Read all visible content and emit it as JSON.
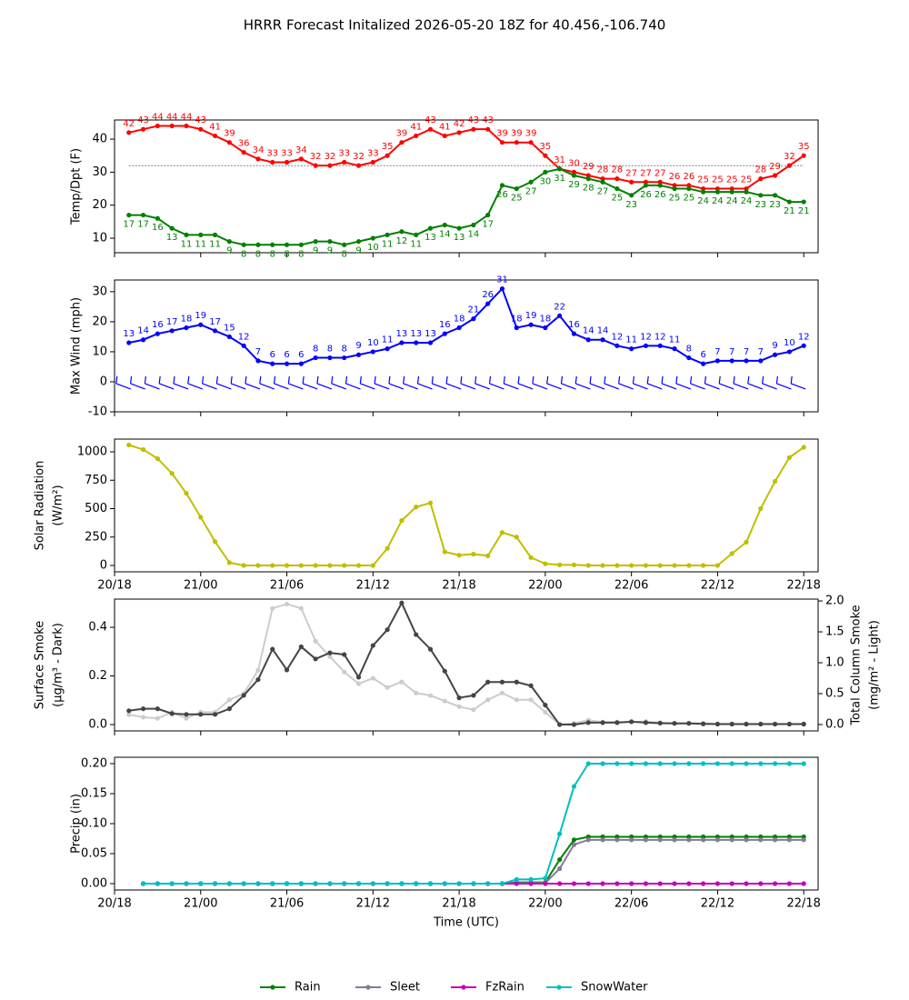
{
  "title": "HRRR Forecast Initalized 2026-05-20 18Z for 40.456,-106.740",
  "chart_data": [
    {
      "type": "line",
      "ylabel": [
        "Temp/Dpt (F)"
      ],
      "xlim": [
        0,
        49
      ],
      "xticks": [
        0,
        6,
        12,
        18,
        24,
        30,
        36,
        42,
        48
      ],
      "ylim": [
        5.6,
        45.8
      ],
      "yticks": [
        10,
        20,
        30,
        40
      ],
      "hline": 32,
      "x": [
        1,
        2,
        3,
        4,
        5,
        6,
        7,
        8,
        9,
        10,
        11,
        12,
        13,
        14,
        15,
        16,
        17,
        18,
        19,
        20,
        21,
        22,
        23,
        24,
        25,
        26,
        27,
        28,
        29,
        30,
        31,
        32,
        33,
        34,
        35,
        36,
        37,
        38,
        39,
        40,
        41,
        42,
        43,
        44,
        45,
        46,
        47,
        48
      ],
      "series": [
        {
          "name": "Temp",
          "color": "#ff0000",
          "labels": "above",
          "values": [
            42,
            43,
            44,
            44,
            44,
            43,
            41,
            39,
            36,
            34,
            33,
            33,
            34,
            32,
            32,
            33,
            32,
            33,
            35,
            39,
            41,
            43,
            41,
            42,
            43,
            43,
            39,
            39,
            39,
            35,
            31,
            30,
            29,
            28,
            28,
            27,
            27,
            27,
            26,
            26,
            25,
            25,
            25,
            25,
            28,
            29,
            32,
            35
          ]
        },
        {
          "name": "Dewpoint",
          "color": "#008000",
          "labels": "below",
          "values": [
            17,
            17,
            16,
            13,
            11,
            11,
            11,
            9,
            8,
            8,
            8,
            8,
            8,
            9,
            9,
            8,
            9,
            10,
            11,
            12,
            11,
            13,
            14,
            13,
            14,
            17,
            26,
            25,
            27,
            30,
            31,
            29,
            28,
            27,
            25,
            23,
            26,
            26,
            25,
            25,
            24,
            24,
            24,
            24,
            23,
            23,
            21,
            21
          ]
        }
      ]
    },
    {
      "type": "line",
      "ylabel": [
        "Max Wind (mph)"
      ],
      "xlim": [
        0,
        49
      ],
      "xticks": [
        0,
        6,
        12,
        18,
        24,
        30,
        36,
        42,
        48
      ],
      "ylim": [
        -10,
        33.9
      ],
      "yticks": [
        -10,
        0,
        10,
        20,
        30
      ],
      "x": [
        1,
        2,
        3,
        4,
        5,
        6,
        7,
        8,
        9,
        10,
        11,
        12,
        13,
        14,
        15,
        16,
        17,
        18,
        19,
        20,
        21,
        22,
        23,
        24,
        25,
        26,
        27,
        28,
        29,
        30,
        31,
        32,
        33,
        34,
        35,
        36,
        37,
        38,
        39,
        40,
        41,
        42,
        43,
        44,
        45,
        46,
        47,
        48
      ],
      "series": [
        {
          "name": "Max Wind",
          "color": "#0000ff",
          "labels": "above",
          "values": [
            13,
            14,
            16,
            17,
            18,
            19,
            17,
            15,
            12,
            7,
            6,
            6,
            6,
            8,
            8,
            8,
            9,
            10,
            11,
            13,
            13,
            13,
            16,
            18,
            21,
            26,
            31,
            18,
            19,
            18,
            22,
            16,
            14,
            14,
            12,
            11,
            12,
            12,
            11,
            8,
            6,
            7,
            7,
            7,
            7,
            9,
            10,
            12
          ]
        }
      ]
    },
    {
      "type": "line",
      "ylabel": [
        "Solar Radiation",
        "(W/m²)"
      ],
      "xlim": [
        0,
        49
      ],
      "xticks": [
        {
          "value": 0,
          "label": "20/18"
        },
        {
          "value": 6,
          "label": "21/00"
        },
        {
          "value": 12,
          "label": "21/06"
        },
        {
          "value": 18,
          "label": "21/12"
        },
        {
          "value": 24,
          "label": "21/18"
        },
        {
          "value": 30,
          "label": "22/00"
        },
        {
          "value": 36,
          "label": "22/06"
        },
        {
          "value": 42,
          "label": "22/12"
        },
        {
          "value": 48,
          "label": "22/18"
        }
      ],
      "ylim": [
        -56,
        1112
      ],
      "yticks": [
        0,
        250,
        500,
        750,
        1000
      ],
      "x": [
        1,
        2,
        3,
        4,
        5,
        6,
        7,
        8,
        9,
        10,
        11,
        12,
        13,
        14,
        15,
        16,
        17,
        18,
        19,
        20,
        21,
        22,
        23,
        24,
        25,
        26,
        27,
        28,
        29,
        30,
        31,
        32,
        33,
        34,
        35,
        36,
        37,
        38,
        39,
        40,
        41,
        42,
        43,
        44,
        45,
        46,
        47,
        48
      ],
      "series": [
        {
          "name": "Solar Radiation",
          "color": "#bfbf00",
          "values": [
            1060,
            1020,
            940,
            810,
            635,
            425,
            210,
            25,
            0,
            0,
            0,
            0,
            0,
            0,
            0,
            0,
            0,
            0,
            150,
            395,
            515,
            550,
            120,
            90,
            100,
            85,
            290,
            250,
            70,
            15,
            5,
            5,
            0,
            0,
            0,
            0,
            0,
            0,
            0,
            0,
            0,
            0,
            105,
            205,
            500,
            740,
            950,
            1040
          ]
        }
      ]
    },
    {
      "type": "line",
      "ylabel": [
        "Surface Smoke",
        "(μg/m³ - Dark)"
      ],
      "y2label": [
        "Total Column Smoke",
        "(mg/m² - Light)"
      ],
      "xlim": [
        0,
        49
      ],
      "xticks": [
        0,
        6,
        12,
        18,
        24,
        30,
        36,
        42,
        48
      ],
      "ylim": [
        -0.026,
        0.516
      ],
      "yticks": [
        {
          "value": 0,
          "label": "0.0"
        },
        0.2,
        0.4
      ],
      "y2lim": [
        -0.103,
        2.03
      ],
      "y2ticks": [
        {
          "value": 0,
          "label": "0.0"
        },
        0.5,
        {
          "value": 1,
          "label": "1.0"
        },
        1.5,
        {
          "value": 2,
          "label": "2.0"
        }
      ],
      "x": [
        1,
        2,
        3,
        4,
        5,
        6,
        7,
        8,
        9,
        10,
        11,
        12,
        13,
        14,
        15,
        16,
        17,
        18,
        19,
        20,
        21,
        22,
        23,
        24,
        25,
        26,
        27,
        28,
        29,
        30,
        31,
        32,
        33,
        34,
        35,
        36,
        37,
        38,
        39,
        40,
        41,
        42,
        43,
        44,
        45,
        46,
        47,
        48
      ],
      "series": [
        {
          "name": "Total Column Smoke",
          "color": "#cccccc",
          "axis": "y2",
          "values": [
            0.16,
            0.12,
            0.1,
            0.2,
            0.1,
            0.2,
            0.2,
            0.4,
            0.5,
            0.88,
            1.88,
            1.95,
            1.88,
            1.35,
            1.1,
            0.85,
            0.66,
            0.75,
            0.6,
            0.69,
            0.51,
            0.47,
            0.38,
            0.29,
            0.24,
            0.4,
            0.51,
            0.4,
            0.4,
            0.2,
            0,
            0.02,
            0.07,
            0.04,
            0.04,
            0.04,
            0.05,
            0.03,
            0.02,
            0.02,
            0.02,
            0.01,
            0.01,
            0.01,
            0.01,
            0.01,
            0.01,
            0.01
          ]
        },
        {
          "name": "Surface Smoke",
          "color": "#444444",
          "values": [
            0.057,
            0.065,
            0.065,
            0.045,
            0.042,
            0.042,
            0.042,
            0.065,
            0.12,
            0.185,
            0.31,
            0.225,
            0.32,
            0.27,
            0.295,
            0.288,
            0.195,
            0.325,
            0.39,
            0.5,
            0.37,
            0.31,
            0.22,
            0.11,
            0.12,
            0.175,
            0.175,
            0.175,
            0.16,
            0.08,
            0,
            0,
            0.008,
            0.008,
            0.008,
            0.012,
            0.008,
            0.006,
            0.005,
            0.005,
            0.003,
            0.002,
            0.002,
            0.002,
            0.002,
            0.002,
            0.002,
            0.002
          ]
        }
      ]
    },
    {
      "type": "line",
      "ylabel": [
        "Precip (in)"
      ],
      "xlabel": "Time (UTC)",
      "legend": "bottom",
      "xlim": [
        0,
        49
      ],
      "xticks": [
        {
          "value": 0,
          "label": "20/18"
        },
        {
          "value": 6,
          "label": "21/00"
        },
        {
          "value": 12,
          "label": "21/06"
        },
        {
          "value": 18,
          "label": "21/12"
        },
        {
          "value": 24,
          "label": "21/18"
        },
        {
          "value": 30,
          "label": "22/00"
        },
        {
          "value": 36,
          "label": "22/06"
        },
        {
          "value": 42,
          "label": "22/12"
        },
        {
          "value": 48,
          "label": "22/18"
        }
      ],
      "ylim": [
        -0.0106,
        0.2106
      ],
      "yticks": [
        {
          "value": 0,
          "label": "0.00"
        },
        0.05,
        {
          "value": 0.1,
          "label": "0.10"
        },
        0.15,
        {
          "value": 0.2,
          "label": "0.20"
        }
      ],
      "x": [
        2,
        3,
        4,
        5,
        6,
        7,
        8,
        9,
        10,
        11,
        12,
        13,
        14,
        15,
        16,
        17,
        18,
        19,
        20,
        21,
        22,
        23,
        24,
        25,
        26,
        27,
        28,
        29,
        30,
        31,
        32,
        33,
        34,
        35,
        36,
        37,
        38,
        39,
        40,
        41,
        42,
        43,
        44,
        45,
        46,
        47,
        48
      ],
      "series": [
        {
          "name": "Rain",
          "color": "#008000",
          "values": [
            0,
            0,
            0,
            0,
            0,
            0,
            0,
            0,
            0,
            0,
            0,
            0,
            0,
            0,
            0,
            0,
            0,
            0,
            0,
            0,
            0,
            0,
            0,
            0,
            0,
            0,
            0.002,
            0.002,
            0.002,
            0.04,
            0.073,
            0.078,
            0.078,
            0.078,
            0.078,
            0.078,
            0.078,
            0.078,
            0.078,
            0.078,
            0.078,
            0.078,
            0.078,
            0.078,
            0.078,
            0.078,
            0.078
          ]
        },
        {
          "name": "Sleet",
          "color": "#857a99",
          "values": [
            0,
            0,
            0,
            0,
            0,
            0,
            0,
            0,
            0,
            0,
            0,
            0,
            0,
            0,
            0,
            0,
            0,
            0,
            0,
            0,
            0,
            0,
            0,
            0,
            0,
            0,
            0.001,
            0.001,
            0.001,
            0.025,
            0.065,
            0.073,
            0.073,
            0.073,
            0.073,
            0.073,
            0.073,
            0.073,
            0.073,
            0.073,
            0.073,
            0.073,
            0.073,
            0.073,
            0.073,
            0.073,
            0.073
          ]
        },
        {
          "name": "FzRain",
          "color": "#bf00bf",
          "values": [
            0,
            0,
            0,
            0,
            0,
            0,
            0,
            0,
            0,
            0,
            0,
            0,
            0,
            0,
            0,
            0,
            0,
            0,
            0,
            0,
            0,
            0,
            0,
            0,
            0,
            0,
            0,
            0,
            0,
            0,
            0,
            0,
            0,
            0,
            0,
            0,
            0,
            0,
            0,
            0,
            0,
            0,
            0,
            0,
            0,
            0,
            0
          ]
        },
        {
          "name": "SnowWater",
          "color": "#00bfbf",
          "values": [
            0,
            0,
            0,
            0,
            0,
            0,
            0,
            0,
            0,
            0,
            0,
            0,
            0,
            0,
            0,
            0,
            0,
            0,
            0,
            0,
            0,
            0,
            0,
            0,
            0,
            0,
            0.007,
            0.007,
            0.009,
            0.083,
            0.162,
            0.2,
            0.2,
            0.2,
            0.2,
            0.2,
            0.2,
            0.2,
            0.2,
            0.2,
            0.2,
            0.2,
            0.2,
            0.2,
            0.2,
            0.2,
            0.2
          ]
        }
      ]
    }
  ]
}
